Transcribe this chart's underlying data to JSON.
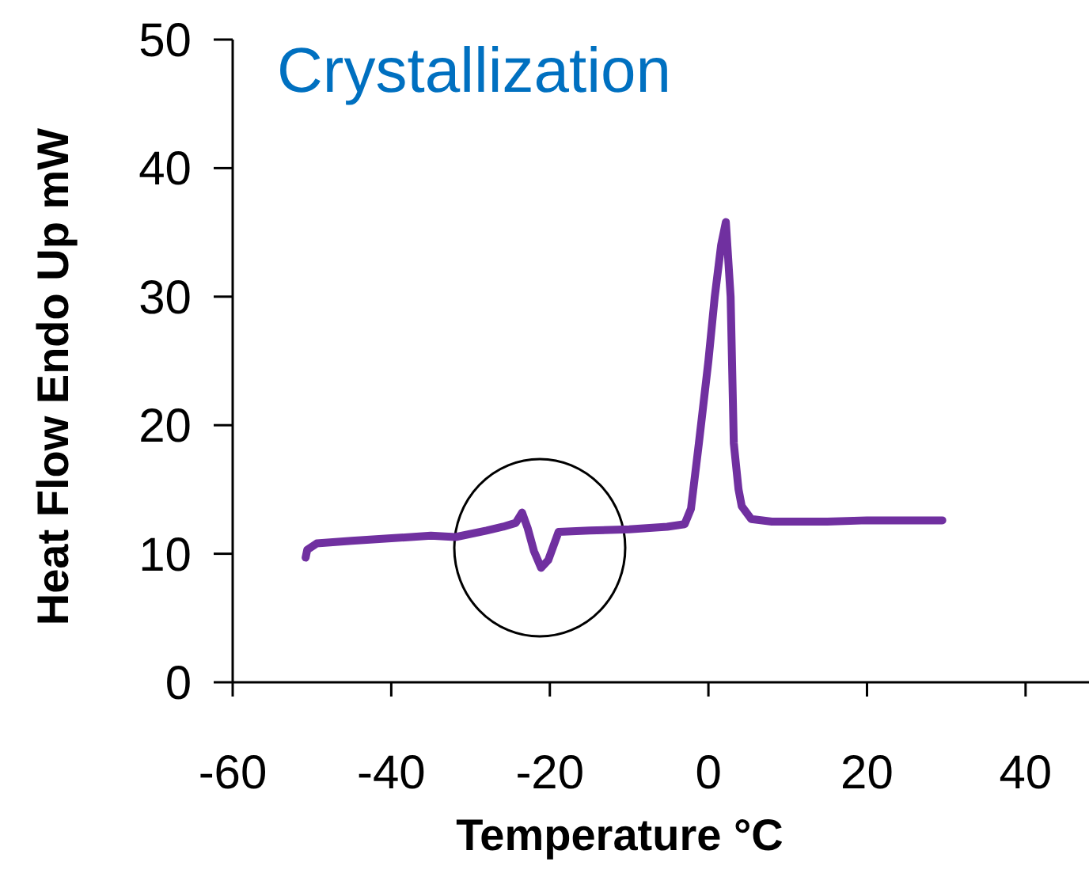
{
  "chart_data": {
    "type": "line",
    "title": "Crystallization",
    "xlabel": "Temperature °C",
    "ylabel": "Heat Flow Endo Up mW",
    "xlim": [
      -60,
      48
    ],
    "xticks": [
      -60,
      -40,
      -20,
      0,
      20,
      40
    ],
    "ylim": [
      0,
      50
    ],
    "yticks": [
      0,
      10,
      20,
      30,
      40,
      50
    ],
    "grid": false,
    "marker": "none",
    "line_style": "solid",
    "series": [
      {
        "color": "#7030a0",
        "x": [
          -50.8,
          -50.6,
          -49.4,
          -45,
          -40,
          -35,
          -31.9,
          -28,
          -25.9,
          -24.3,
          -23.5,
          -22.8,
          -22,
          -21.1,
          -20.2,
          -18.9,
          -15,
          -10,
          -5.2,
          -3,
          -2.2,
          -1.2,
          0,
          0.8,
          1.6,
          2.2,
          2.8,
          3.2,
          3.8,
          4.2,
          5.4,
          8,
          15,
          20,
          25,
          29.5
        ],
        "values": [
          9.7,
          10.3,
          10.8,
          11,
          11.2,
          11.4,
          11.3,
          11.8,
          12.1,
          12.4,
          13.2,
          12,
          10.2,
          8.9,
          9.5,
          11.7,
          11.8,
          11.9,
          12.1,
          12.3,
          13.5,
          18.6,
          25,
          30,
          34,
          35.8,
          30,
          18.6,
          15,
          13.7,
          12.7,
          12.5,
          12.5,
          12.6,
          12.6,
          12.6
        ]
      }
    ]
  }
}
